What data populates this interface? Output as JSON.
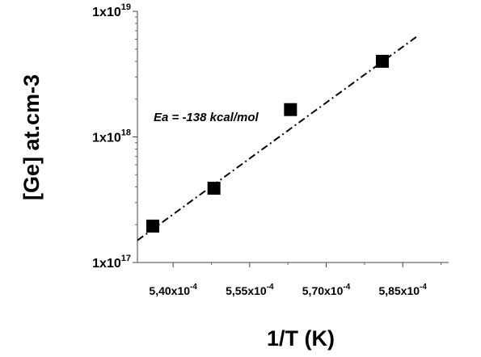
{
  "chart_data": {
    "type": "scatter",
    "xlabel": "1/T (K)",
    "ylabel": "[Ge] at.cm-3",
    "xlim": [
      0.000533,
      0.000594
    ],
    "ylim": [
      1e+17,
      1e+19
    ],
    "y_scale": "log",
    "grid": false,
    "x_ticks": [
      {
        "value": 0.00054,
        "mantissa": "5,40x10",
        "exp": "-4"
      },
      {
        "value": 0.000555,
        "mantissa": "5,55x10",
        "exp": "-4"
      },
      {
        "value": 0.00057,
        "mantissa": "5,70x10",
        "exp": "-4"
      },
      {
        "value": 0.000585,
        "mantissa": "5,85x10",
        "exp": "-4"
      }
    ],
    "y_ticks": [
      {
        "value": 1e+17,
        "mantissa": "1x10",
        "exp": "17"
      },
      {
        "value": 1e+18,
        "mantissa": "1x10",
        "exp": "18"
      },
      {
        "value": 1e+19,
        "mantissa": "1x10",
        "exp": "19"
      }
    ],
    "points": [
      {
        "x": 0.000536,
        "y": 1.95e+17
      },
      {
        "x": 0.000548,
        "y": 3.9e+17
      },
      {
        "x": 0.000563,
        "y": 1.65e+18
      },
      {
        "x": 0.000581,
        "y": 4e+18
      }
    ],
    "fit_line": {
      "x": [
        0.000533,
        0.000588
      ],
      "y": [
        1.5e+17,
        6.4e+18
      ]
    },
    "annotation": "Ea = -138 kcal/mol",
    "marker_color": "#000000",
    "line_color": "#000000"
  }
}
